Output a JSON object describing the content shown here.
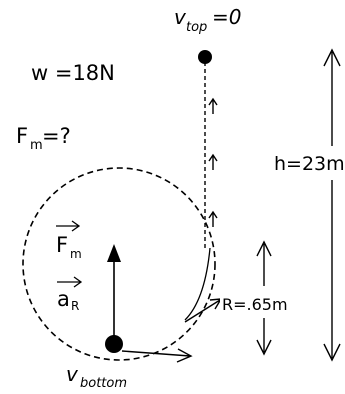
{
  "labels": {
    "weight_label": "w =18N",
    "force_label": "F",
    "force_sub": "m",
    "force_eq": "=?",
    "v_top": "v",
    "v_top_sub": "top",
    "v_top_eq": "=0",
    "height": "h=23m",
    "radius": "R=.65m",
    "fm_vector": "F",
    "fm_vector_sub": "m",
    "ar_vector": "a",
    "ar_vector_sub": "R",
    "v_bottom": "v",
    "v_bottom_sub": "bottom"
  },
  "colors": {
    "ink": "#000000",
    "background": "#ffffff"
  }
}
